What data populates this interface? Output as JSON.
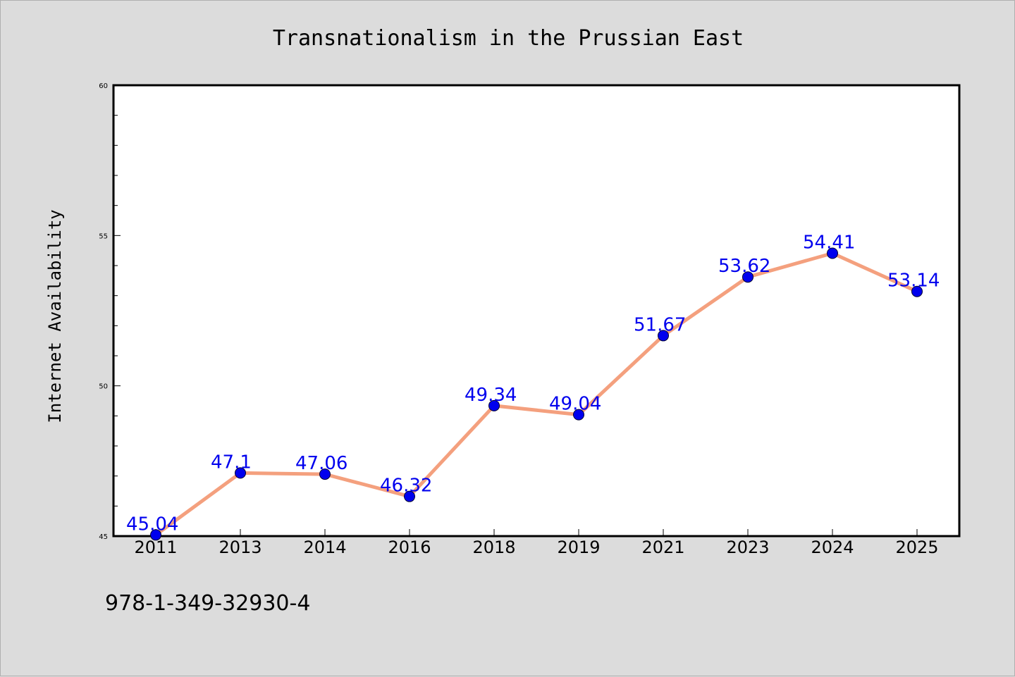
{
  "chart_data": {
    "type": "line",
    "title": "Transnationalism in the Prussian East",
    "xlabel": "",
    "ylabel": "Internet Availability",
    "categories": [
      "2011",
      "2013",
      "2014",
      "2016",
      "2018",
      "2019",
      "2021",
      "2023",
      "2024",
      "2025"
    ],
    "series": [
      {
        "values": [
          45.04,
          47.1,
          47.06,
          46.32,
          49.34,
          49.04,
          51.67,
          53.62,
          54.41,
          53.14
        ]
      }
    ],
    "data_labels": [
      "45.04",
      "47.1",
      "47.06",
      "46.32",
      "49.34",
      "49.04",
      "51.67",
      "53.62",
      "54.41",
      "53.14"
    ],
    "ylim": [
      45,
      60
    ],
    "yticks": [
      "45",
      "50",
      "55",
      "60"
    ],
    "grid": false,
    "legend": "none",
    "colors": {
      "line": "#f4a07e",
      "marker": "#0000ee",
      "label": "#0000ee",
      "background": "#dcdcdc",
      "plot_background": "#ffffff"
    }
  },
  "footer": {
    "isbn": "978-1-349-32930-4"
  }
}
